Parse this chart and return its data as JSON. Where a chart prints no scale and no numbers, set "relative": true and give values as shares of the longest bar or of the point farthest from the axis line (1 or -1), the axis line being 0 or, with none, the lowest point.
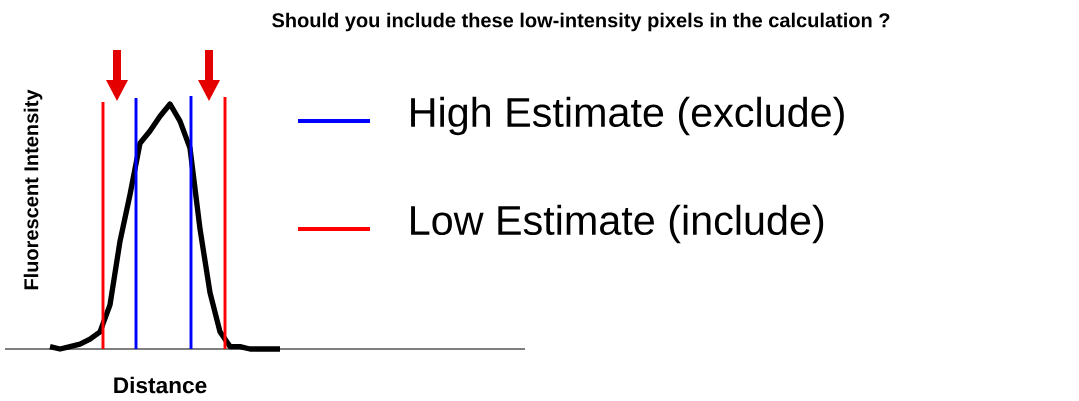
{
  "chart_data": {
    "type": "line",
    "relative": true,
    "title": "Should you include these low-intensity pixels in the calculation ?",
    "xlabel": "Distance",
    "ylabel": "Fluorescent Intensity",
    "categories": [
      null,
      null,
      null,
      null,
      null,
      null,
      null,
      null,
      null,
      null,
      null,
      null,
      null,
      null,
      null,
      null,
      null,
      null,
      null,
      null,
      null,
      null,
      null,
      null
    ],
    "series": [
      {
        "color": "#000000",
        "values": [
          0.01,
          0.0,
          0.01,
          0.02,
          0.04,
          0.07,
          0.18,
          0.44,
          0.63,
          0.84,
          0.89,
          0.95,
          1.0,
          0.93,
          0.82,
          0.49,
          0.23,
          0.07,
          0.01,
          0.01,
          0.0,
          0.0,
          0.0,
          0.0
        ]
      }
    ],
    "annotations": [
      "High Estimate (exclude)",
      "Low Estimate (include)"
    ]
  }
}
